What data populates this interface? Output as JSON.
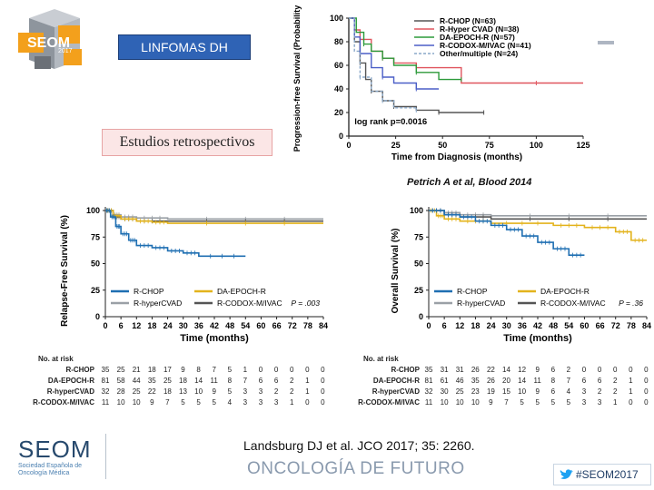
{
  "slide": {
    "logo_text": "SEOM",
    "logo_year": "2017",
    "title": "LINFOMAS DH",
    "subtitle": "Estudios retrospectivos",
    "top_citation": "Petrich A et al, Blood 2014",
    "bottom_citation": "Landsburg DJ et al. JCO 2017; 35: 2260.",
    "footer_logo": "SEOM",
    "footer_logo_sub": "Sociedad Española de Oncología Médica",
    "footer_tagline": "ONCOLOGÍA DE FUTURO",
    "hashtag": "#SEOM2017"
  },
  "chart_data": [
    {
      "type": "line",
      "title": "",
      "xlabel": "Time from Diagnosis (months)",
      "ylabel": "Progression-free Survival (Probability)",
      "xlim": [
        0,
        125
      ],
      "ylim": [
        0,
        100
      ],
      "xticks": [
        "0",
        "25",
        "50",
        "75",
        "100",
        "125"
      ],
      "yticks": [
        "0",
        "20",
        "40",
        "60",
        "80",
        "100"
      ],
      "annotation": "log rank p=0.0016",
      "series": [
        {
          "name": "R-CHOP (N=63)",
          "color": "#555555",
          "x": [
            0,
            3,
            6,
            9,
            12,
            18,
            24,
            36,
            48,
            60,
            72
          ],
          "y": [
            100,
            80,
            62,
            48,
            38,
            30,
            25,
            22,
            20,
            20,
            20
          ]
        },
        {
          "name": "R-Hyper CVAD (N=38)",
          "color": "#e0555e",
          "x": [
            0,
            3,
            6,
            12,
            18,
            24,
            36,
            60,
            100,
            125
          ],
          "y": [
            100,
            90,
            82,
            72,
            66,
            62,
            58,
            45,
            45,
            45
          ]
        },
        {
          "name": "DA-EPOCH-R (N=57)",
          "color": "#2c9a3a",
          "x": [
            0,
            4,
            8,
            12,
            18,
            24,
            36,
            48,
            60
          ],
          "y": [
            100,
            88,
            78,
            72,
            66,
            60,
            54,
            48,
            48
          ]
        },
        {
          "name": "R-CODOX-M/IVAC (N=41)",
          "color": "#4b5fc7",
          "x": [
            0,
            3,
            6,
            12,
            18,
            24,
            36,
            48
          ],
          "y": [
            100,
            84,
            70,
            58,
            50,
            45,
            40,
            40
          ]
        },
        {
          "name": "Other/multiple (N=24)",
          "color": "#8aa8c8",
          "x": [
            0,
            3,
            6,
            12,
            18,
            24,
            36
          ],
          "y": [
            100,
            72,
            50,
            38,
            30,
            24,
            22
          ]
        }
      ]
    },
    {
      "type": "line",
      "title": "",
      "xlabel": "Time (months)",
      "ylabel": "Relapse-Free Survival (%)",
      "xlim": [
        0,
        84
      ],
      "ylim": [
        0,
        100
      ],
      "xticks": [
        "0",
        "6",
        "12",
        "18",
        "24",
        "30",
        "36",
        "42",
        "48",
        "54",
        "60",
        "66",
        "72",
        "78",
        "84"
      ],
      "yticks": [
        "0",
        "25",
        "50",
        "75",
        "100"
      ],
      "annotation": "P = .003",
      "series": [
        {
          "name": "R-CHOP",
          "color": "#1f6fb2",
          "x": [
            0,
            2,
            4,
            6,
            9,
            12,
            18,
            24,
            30,
            36,
            54
          ],
          "y": [
            100,
            94,
            85,
            78,
            72,
            67,
            65,
            62,
            60,
            57,
            57
          ]
        },
        {
          "name": "DA-EPOCH-R",
          "color": "#e3b31c",
          "x": [
            0,
            3,
            6,
            12,
            18,
            24,
            84
          ],
          "y": [
            100,
            95,
            92,
            90,
            89,
            88,
            88
          ]
        },
        {
          "name": "R-hyperCVAD",
          "color": "#9aa0a6",
          "x": [
            0,
            3,
            6,
            12,
            24,
            84
          ],
          "y": [
            100,
            96,
            94,
            93,
            92,
            92
          ]
        },
        {
          "name": "R-CODOX-M/IVAC",
          "color": "#555555",
          "x": [
            0,
            3,
            6,
            12,
            24,
            84
          ],
          "y": [
            100,
            94,
            92,
            90,
            90,
            90
          ]
        }
      ],
      "legend": [
        "R-CHOP",
        "DA-EPOCH-R",
        "R-hyperCVAD",
        "R-CODOX-M/IVAC"
      ],
      "at_risk": {
        "title": "No. at risk",
        "rows": [
          {
            "label": "R-CHOP",
            "values": [
              35,
              25,
              21,
              18,
              17,
              9,
              8,
              7,
              5,
              1,
              0,
              0,
              0,
              0,
              0
            ]
          },
          {
            "label": "DA-EPOCH-R",
            "values": [
              81,
              58,
              44,
              35,
              25,
              18,
              14,
              11,
              8,
              7,
              6,
              6,
              2,
              1,
              0
            ]
          },
          {
            "label": "R-hyperCVAD",
            "values": [
              32,
              28,
              25,
              22,
              18,
              13,
              10,
              9,
              5,
              3,
              3,
              2,
              2,
              1,
              0
            ]
          },
          {
            "label": "R-CODOX-M/IVAC",
            "values": [
              11,
              10,
              10,
              9,
              7,
              5,
              5,
              5,
              4,
              3,
              3,
              3,
              1,
              0,
              0
            ]
          }
        ]
      }
    },
    {
      "type": "line",
      "title": "",
      "xlabel": "Time (months)",
      "ylabel": "Overall Survival (%)",
      "xlim": [
        0,
        84
      ],
      "ylim": [
        0,
        100
      ],
      "xticks": [
        "0",
        "6",
        "12",
        "18",
        "24",
        "30",
        "36",
        "42",
        "48",
        "54",
        "60",
        "66",
        "72",
        "78",
        "84"
      ],
      "yticks": [
        "0",
        "25",
        "50",
        "75",
        "100"
      ],
      "annotation": "P = .36",
      "series": [
        {
          "name": "R-CHOP",
          "color": "#1f6fb2",
          "x": [
            0,
            6,
            12,
            18,
            24,
            30,
            36,
            42,
            48,
            54,
            60
          ],
          "y": [
            100,
            96,
            94,
            90,
            86,
            82,
            76,
            70,
            64,
            58,
            58
          ]
        },
        {
          "name": "DA-EPOCH-R",
          "color": "#e3b31c",
          "x": [
            0,
            3,
            6,
            12,
            24,
            48,
            60,
            72,
            78,
            84
          ],
          "y": [
            100,
            95,
            92,
            90,
            88,
            86,
            84,
            80,
            72,
            72
          ]
        },
        {
          "name": "R-hyperCVAD",
          "color": "#9aa0a6",
          "x": [
            0,
            6,
            12,
            24,
            84
          ],
          "y": [
            100,
            98,
            96,
            95,
            95
          ]
        },
        {
          "name": "R-CODOX-M/IVAC",
          "color": "#555555",
          "x": [
            0,
            6,
            12,
            24,
            84
          ],
          "y": [
            100,
            96,
            94,
            92,
            92
          ]
        }
      ],
      "legend": [
        "R-CHOP",
        "DA-EPOCH-R",
        "R-hyperCVAD",
        "R-CODOX-M/IVAC"
      ],
      "at_risk": {
        "title": "No. at risk",
        "rows": [
          {
            "label": "R-CHOP",
            "values": [
              35,
              31,
              31,
              26,
              22,
              14,
              12,
              9,
              6,
              2,
              0,
              0,
              0,
              0,
              0
            ]
          },
          {
            "label": "DA-EPOCH-R",
            "values": [
              81,
              61,
              46,
              35,
              26,
              20,
              14,
              11,
              8,
              7,
              6,
              6,
              2,
              1,
              0
            ]
          },
          {
            "label": "R-hyperCVAD",
            "values": [
              32,
              30,
              25,
              23,
              19,
              15,
              10,
              9,
              6,
              4,
              3,
              2,
              2,
              1,
              0
            ]
          },
          {
            "label": "R-CODOX-M/IVAC",
            "values": [
              11,
              10,
              10,
              10,
              9,
              7,
              5,
              5,
              5,
              5,
              3,
              3,
              1,
              0,
              0
            ]
          }
        ]
      }
    }
  ],
  "top_legend": [
    "R-CHOP (N=63)",
    "R-Hyper CVAD (N=38)",
    "DA-EPOCH-R (N=57)",
    "R-CODOX-M/IVAC (N=41)",
    "Other/multiple (N=24)"
  ]
}
